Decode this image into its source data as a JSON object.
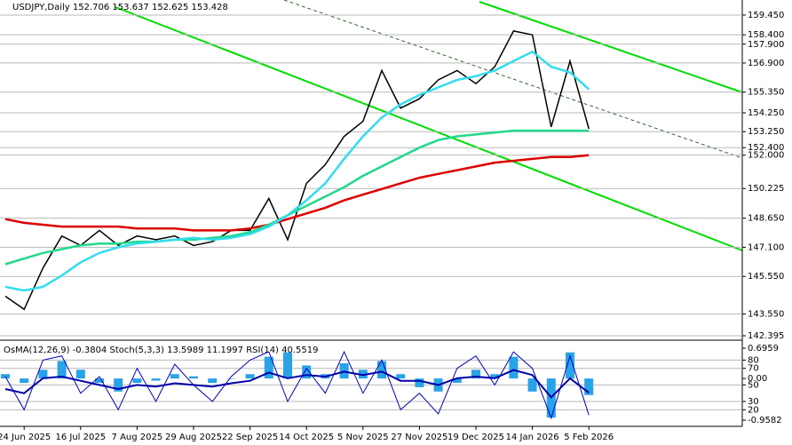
{
  "chart_data": [
    {
      "type": "line",
      "title": "USDJPY,Daily 152.706 153.637 152.625 153.428",
      "categories": [
        null,
        "24 Jun 2025",
        null,
        null,
        "16 Jul 2025",
        null,
        null,
        "7 Aug 2025",
        null,
        null,
        "29 Aug 2025",
        null,
        null,
        "22 Sep 2025",
        null,
        null,
        "14 Oct 2025",
        null,
        null,
        "5 Nov 2025",
        null,
        null,
        "27 Nov 2025",
        null,
        null,
        "19 Dec 2025",
        null,
        null,
        "14 Jan 2026",
        null,
        null,
        "5 Feb 2026"
      ],
      "series": [
        {
          "color": "#000000",
          "values": [
            144.5,
            143.8,
            146.0,
            147.7,
            147.2,
            148.0,
            147.2,
            147.7,
            147.5,
            147.7,
            147.2,
            147.4,
            148.0,
            148.0,
            149.7,
            147.5,
            150.5,
            151.5,
            153.0,
            153.8,
            156.5,
            154.5,
            155.0,
            156.0,
            156.5,
            155.8,
            156.7,
            158.6,
            158.4,
            153.5,
            157.0,
            153.4
          ]
        },
        {
          "color": "#dd0000",
          "values": [
            148.6,
            148.4,
            148.3,
            148.2,
            148.2,
            148.2,
            148.2,
            148.1,
            148.1,
            148.1,
            148.0,
            148.0,
            148.0,
            148.1,
            148.3,
            148.6,
            148.9,
            149.2,
            149.6,
            149.9,
            150.2,
            150.5,
            150.8,
            151.0,
            151.2,
            151.4,
            151.6,
            151.7,
            151.8,
            151.9,
            151.9,
            152.0
          ]
        },
        {
          "color": "#22d88a",
          "values": [
            146.2,
            146.5,
            146.8,
            147.0,
            147.2,
            147.3,
            147.3,
            147.4,
            147.4,
            147.5,
            147.5,
            147.6,
            147.7,
            147.9,
            148.3,
            148.8,
            149.3,
            149.8,
            150.3,
            150.9,
            151.4,
            151.9,
            152.4,
            152.8,
            153.0,
            153.1,
            153.2,
            153.3,
            153.3,
            153.3,
            153.3,
            153.3
          ]
        },
        {
          "color": "#33ddee",
          "values": [
            145.0,
            144.8,
            145.0,
            145.6,
            146.3,
            146.8,
            147.1,
            147.3,
            147.4,
            147.5,
            147.6,
            147.5,
            147.6,
            147.8,
            148.2,
            148.8,
            149.6,
            150.5,
            151.8,
            153.0,
            154.0,
            154.7,
            155.2,
            155.6,
            156.0,
            156.2,
            156.5,
            157.0,
            157.5,
            156.7,
            156.4,
            155.5
          ]
        }
      ],
      "ylim": [
        142.16,
        160.25
      ],
      "yticks": [
        {
          "value": 159.45,
          "label": "159.450"
        },
        {
          "value": 158.4,
          "label": "158.400"
        },
        {
          "value": 157.9,
          "label": "157.900"
        },
        {
          "value": 156.9,
          "label": "156.900"
        },
        {
          "value": 155.35,
          "label": "155.350"
        },
        {
          "value": 154.25,
          "label": "154.250"
        },
        {
          "value": 153.25,
          "label": "153.250"
        },
        {
          "value": 152.4,
          "label": "152.400"
        },
        {
          "value": 152,
          "label": "152.000"
        },
        {
          "value": 150.225,
          "label": "150.225"
        },
        {
          "value": 148.65,
          "label": "148.650"
        },
        {
          "value": 147.1,
          "label": "147.100"
        },
        {
          "value": 145.55,
          "label": "145.550"
        },
        {
          "value": 143.55,
          "label": "143.550"
        },
        {
          "value": 142.395,
          "label": "142.395"
        }
      ],
      "grid": true
    },
    {
      "type": "indicator",
      "title": "OsMA(12,26,9) -0.3804 Stoch(5,3,3) 13.5989 11.1997 RSI(14) 40.5519",
      "series": [
        {
          "color": "#29a3e8",
          "axis": "y2",
          "values": [
            0.1,
            -0.1,
            0.2,
            0.4,
            0.2,
            -0.1,
            -0.3,
            -0.1,
            -0.05,
            0.1,
            0.05,
            -0.1,
            0.0,
            0.1,
            0.5,
            0.6,
            0.3,
            0.1,
            0.35,
            0.2,
            0.4,
            0.1,
            -0.2,
            -0.3,
            -0.1,
            0.2,
            0.1,
            0.5,
            -0.3,
            -0.9,
            0.6,
            -0.3804
          ]
        },
        {
          "color": "#0000cc",
          "values": [
            60,
            20,
            80,
            85,
            40,
            60,
            20,
            70,
            30,
            75,
            50,
            30,
            60,
            80,
            90,
            30,
            70,
            40,
            90,
            40,
            80,
            20,
            40,
            15,
            70,
            85,
            50,
            90,
            70,
            10,
            85,
            13.5989
          ]
        },
        {
          "color": "#0000aa",
          "values": [
            45,
            40,
            58,
            60,
            55,
            50,
            45,
            50,
            48,
            52,
            50,
            48,
            52,
            55,
            65,
            58,
            62,
            60,
            66,
            62,
            66,
            55,
            55,
            50,
            58,
            60,
            58,
            68,
            62,
            35,
            58,
            40.5519
          ]
        }
      ],
      "ylim": [
        0,
        104
      ],
      "yticks": [
        80,
        70,
        50,
        30,
        20
      ],
      "y2lim": [
        -1.1,
        0.88
      ],
      "y2ticks": [
        0.6959,
        {
          "value": 0,
          "label": "0.00"
        },
        -0.9582
      ],
      "grid": true
    }
  ]
}
